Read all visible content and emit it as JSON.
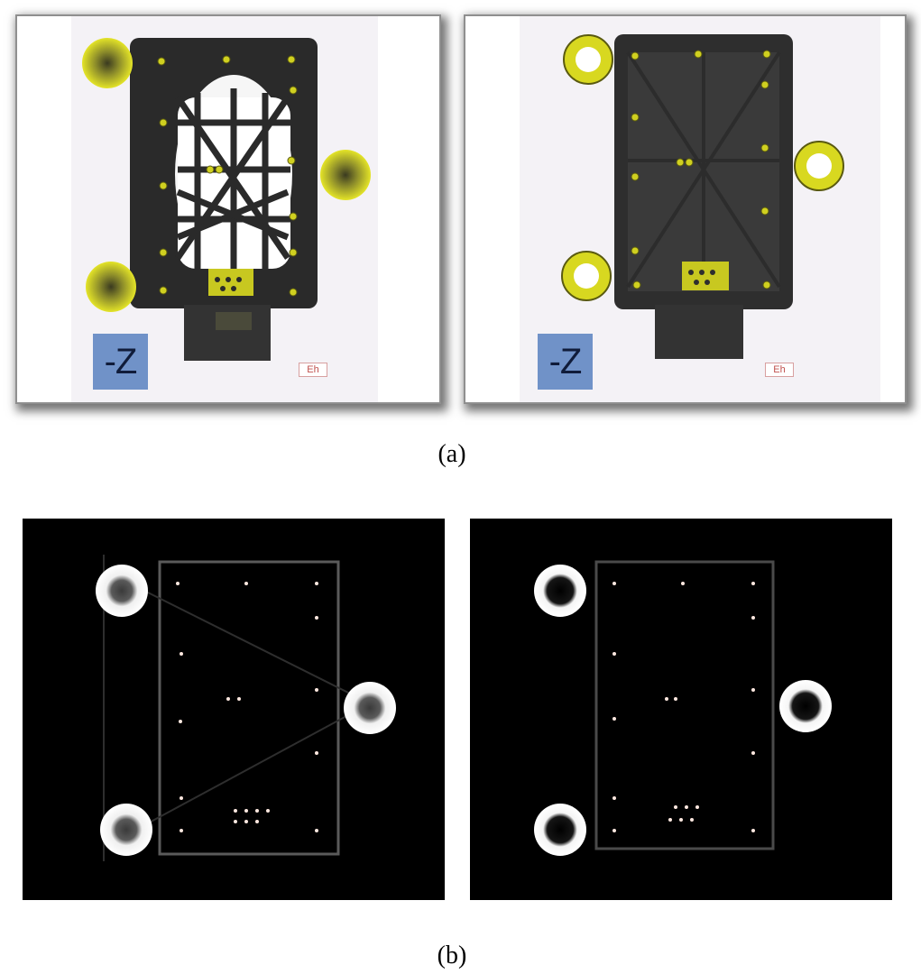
{
  "figure": {
    "label_a": "(a)",
    "label_b": "(b)"
  },
  "panel_a": {
    "left": {
      "axis_badge": "-Z",
      "logo_text": "Eh"
    },
    "right": {
      "axis_badge": "-Z",
      "logo_text": "Eh"
    }
  },
  "colors": {
    "fixture_yellow": "#d8d820",
    "housing_dark": "#2a2a2a",
    "badge_blue": "#7092c8",
    "ct_background": "#000000"
  }
}
